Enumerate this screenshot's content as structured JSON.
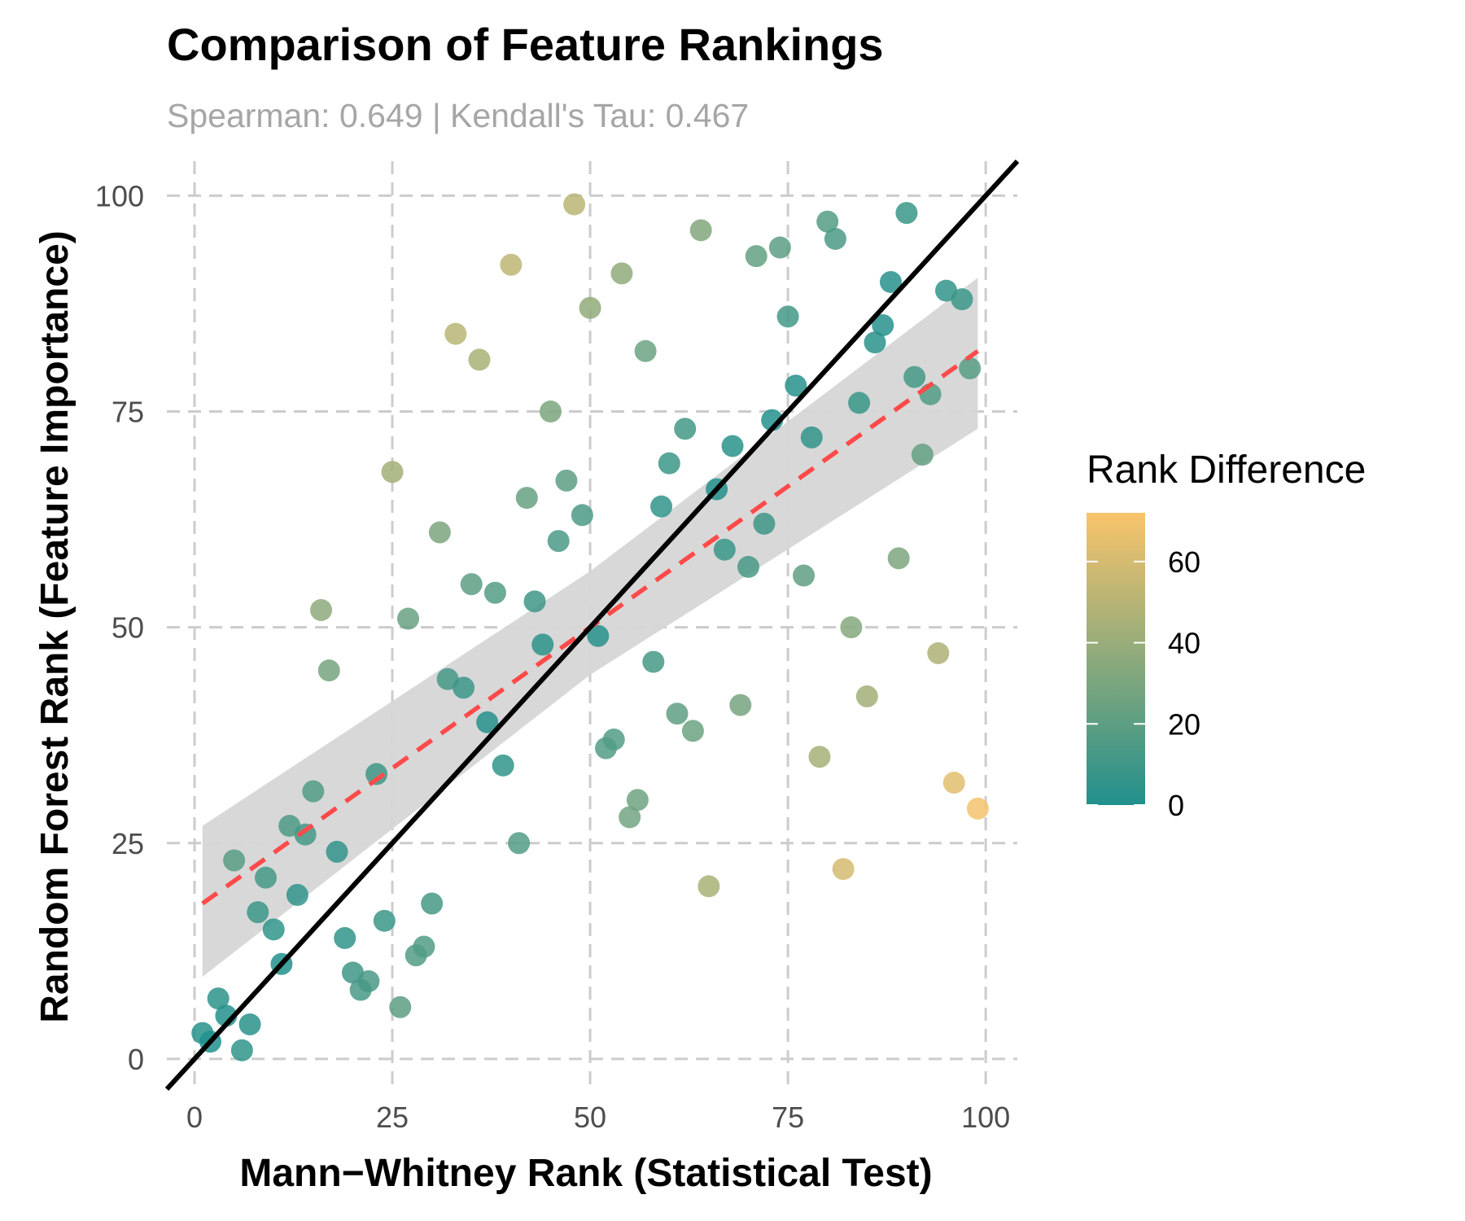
{
  "colors": {
    "low": "#21908C",
    "high": "#F9C46B",
    "grid": "#cccccc",
    "identity_line": "#000000",
    "trend_line": "#ff4a4a",
    "ribbon": "#d6d6d6"
  },
  "chart_data": {
    "type": "scatter",
    "title": "Comparison of Feature Rankings",
    "subtitle": "Spearman: 0.649 | Kendall's Tau: 0.467",
    "xlabel": "Mann−Whitney Rank (Statistical Test)",
    "ylabel": "Random Forest Rank (Feature Importance)",
    "xlim": [
      -3.5,
      104
    ],
    "ylim": [
      -3.5,
      104
    ],
    "xticks": [
      0,
      25,
      50,
      75,
      100
    ],
    "yticks": [
      0,
      25,
      50,
      75,
      100
    ],
    "grid": true,
    "legend": {
      "title": "Rank Difference",
      "placement": "right",
      "range": [
        0,
        72
      ],
      "ticks": [
        0,
        20,
        40,
        60
      ]
    },
    "reference_line": {
      "type": "identity",
      "slope": 1,
      "intercept": 0
    },
    "trend_line": {
      "x": [
        1,
        99
      ],
      "y": [
        18,
        82
      ]
    },
    "confidence_band": {
      "x": [
        1,
        50,
        99
      ],
      "lower": [
        9.5,
        44.5,
        73
      ],
      "upper": [
        27,
        56.5,
        90.5
      ]
    },
    "points": [
      {
        "x": 1,
        "y": 3
      },
      {
        "x": 2,
        "y": 2
      },
      {
        "x": 3,
        "y": 7
      },
      {
        "x": 4,
        "y": 5
      },
      {
        "x": 5,
        "y": 23
      },
      {
        "x": 6,
        "y": 1
      },
      {
        "x": 7,
        "y": 4
      },
      {
        "x": 8,
        "y": 17
      },
      {
        "x": 9,
        "y": 21
      },
      {
        "x": 10,
        "y": 15
      },
      {
        "x": 11,
        "y": 11
      },
      {
        "x": 12,
        "y": 27
      },
      {
        "x": 13,
        "y": 19
      },
      {
        "x": 14,
        "y": 26
      },
      {
        "x": 15,
        "y": 31
      },
      {
        "x": 16,
        "y": 52
      },
      {
        "x": 17,
        "y": 45
      },
      {
        "x": 18,
        "y": 24
      },
      {
        "x": 19,
        "y": 14
      },
      {
        "x": 20,
        "y": 10
      },
      {
        "x": 21,
        "y": 8
      },
      {
        "x": 22,
        "y": 9
      },
      {
        "x": 23,
        "y": 33
      },
      {
        "x": 24,
        "y": 16
      },
      {
        "x": 25,
        "y": 68
      },
      {
        "x": 26,
        "y": 6
      },
      {
        "x": 27,
        "y": 51
      },
      {
        "x": 28,
        "y": 12
      },
      {
        "x": 29,
        "y": 13
      },
      {
        "x": 30,
        "y": 18
      },
      {
        "x": 31,
        "y": 61
      },
      {
        "x": 32,
        "y": 44
      },
      {
        "x": 33,
        "y": 84
      },
      {
        "x": 34,
        "y": 43
      },
      {
        "x": 35,
        "y": 55
      },
      {
        "x": 36,
        "y": 81
      },
      {
        "x": 37,
        "y": 39
      },
      {
        "x": 38,
        "y": 54
      },
      {
        "x": 39,
        "y": 34
      },
      {
        "x": 40,
        "y": 92
      },
      {
        "x": 41,
        "y": 25
      },
      {
        "x": 42,
        "y": 65
      },
      {
        "x": 43,
        "y": 53
      },
      {
        "x": 44,
        "y": 48
      },
      {
        "x": 45,
        "y": 75
      },
      {
        "x": 46,
        "y": 60
      },
      {
        "x": 47,
        "y": 67
      },
      {
        "x": 48,
        "y": 99
      },
      {
        "x": 49,
        "y": 63
      },
      {
        "x": 50,
        "y": 87
      },
      {
        "x": 51,
        "y": 49
      },
      {
        "x": 52,
        "y": 36
      },
      {
        "x": 53,
        "y": 37
      },
      {
        "x": 54,
        "y": 91
      },
      {
        "x": 55,
        "y": 28
      },
      {
        "x": 56,
        "y": 30
      },
      {
        "x": 57,
        "y": 82
      },
      {
        "x": 58,
        "y": 46
      },
      {
        "x": 59,
        "y": 64
      },
      {
        "x": 60,
        "y": 69
      },
      {
        "x": 61,
        "y": 40
      },
      {
        "x": 62,
        "y": 73
      },
      {
        "x": 63,
        "y": 38
      },
      {
        "x": 64,
        "y": 96
      },
      {
        "x": 65,
        "y": 20
      },
      {
        "x": 66,
        "y": 66
      },
      {
        "x": 67,
        "y": 59
      },
      {
        "x": 68,
        "y": 71
      },
      {
        "x": 69,
        "y": 41
      },
      {
        "x": 70,
        "y": 57
      },
      {
        "x": 71,
        "y": 93
      },
      {
        "x": 72,
        "y": 62
      },
      {
        "x": 73,
        "y": 74
      },
      {
        "x": 74,
        "y": 94
      },
      {
        "x": 75,
        "y": 86
      },
      {
        "x": 76,
        "y": 78
      },
      {
        "x": 77,
        "y": 56
      },
      {
        "x": 78,
        "y": 72
      },
      {
        "x": 79,
        "y": 35
      },
      {
        "x": 80,
        "y": 97
      },
      {
        "x": 81,
        "y": 95
      },
      {
        "x": 82,
        "y": 22
      },
      {
        "x": 83,
        "y": 50
      },
      {
        "x": 84,
        "y": 76
      },
      {
        "x": 85,
        "y": 42
      },
      {
        "x": 86,
        "y": 83
      },
      {
        "x": 87,
        "y": 85
      },
      {
        "x": 88,
        "y": 90
      },
      {
        "x": 89,
        "y": 58
      },
      {
        "x": 90,
        "y": 98
      },
      {
        "x": 91,
        "y": 79
      },
      {
        "x": 92,
        "y": 70
      },
      {
        "x": 93,
        "y": 77
      },
      {
        "x": 94,
        "y": 47
      },
      {
        "x": 95,
        "y": 89
      },
      {
        "x": 96,
        "y": 32
      },
      {
        "x": 97,
        "y": 88
      },
      {
        "x": 98,
        "y": 80
      },
      {
        "x": 99,
        "y": 29
      }
    ]
  }
}
